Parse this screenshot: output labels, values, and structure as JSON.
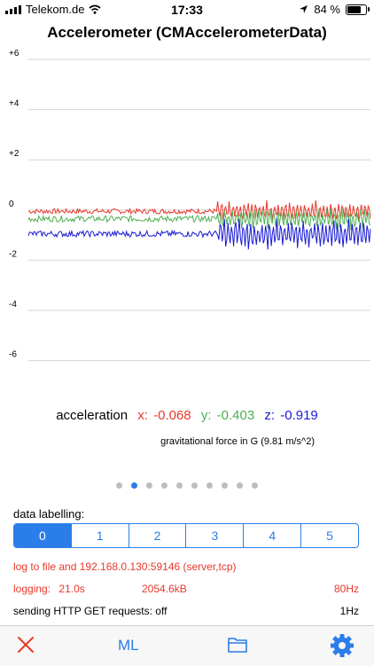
{
  "status_bar": {
    "carrier": "Telekom.de",
    "time": "17:33",
    "battery": "84 %",
    "battery_level": 0.84
  },
  "title": "Accelerometer (CMAccelerometerData)",
  "chart_data": {
    "type": "line",
    "title": "Accelerometer (CMAccelerometerData)",
    "ylim": [
      -7,
      6
    ],
    "yticks": [
      "+6",
      "+4",
      "+2",
      "0",
      "-2",
      "-4",
      "-6"
    ],
    "grid": true,
    "series": [
      {
        "name": "x",
        "color": "#e8382b",
        "approx_level": -0.05,
        "noise": 0.1
      },
      {
        "name": "y",
        "color": "#4caf50",
        "approx_level": -0.35,
        "noise": 0.12
      },
      {
        "name": "z",
        "color": "#1a1ad6",
        "approx_level": -0.95,
        "noise": 0.12
      }
    ]
  },
  "readout": {
    "label": "acceleration",
    "x_label": "x:",
    "x_value": "-0.068",
    "y_label": "y:",
    "y_value": "-0.403",
    "z_label": "z:",
    "z_value": "-0.919",
    "units": "gravitational force in G (9.81 m/s^2)"
  },
  "colors": {
    "x": "#e8382b",
    "y": "#4caf50",
    "z": "#1a1ad6",
    "accent": "#2b7de9"
  },
  "pager": {
    "count": 10,
    "active_index": 1
  },
  "labelling": {
    "label": "data labelling:",
    "options": [
      "0",
      "1",
      "2",
      "3",
      "4",
      "5"
    ],
    "selected": 0
  },
  "logging": {
    "destination": "log to file and 192.168.0.130:59146 (server,tcp)",
    "logging_label": "logging:",
    "duration": "21.0s",
    "size": "2054.6kB",
    "rate": "80Hz",
    "http_label": "sending HTTP GET requests: off",
    "http_rate": "1Hz"
  },
  "toolbar": {
    "close_icon": "close-icon",
    "ml_label": "ML",
    "folder_icon": "folder-icon",
    "settings_icon": "gear-icon"
  }
}
